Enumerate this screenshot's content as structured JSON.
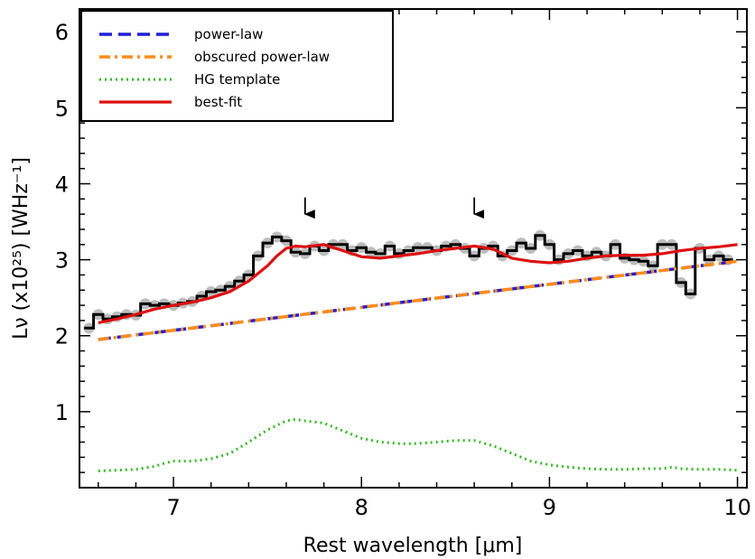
{
  "chart_data": {
    "type": "line",
    "title": "",
    "xlabel": "Rest wavelength [μm]",
    "ylabel": "Lν (x10²⁵) [WHz⁻¹]",
    "xlim": [
      6.5,
      10.05
    ],
    "ylim": [
      0,
      6.3
    ],
    "xticks": [
      7,
      8,
      9,
      10
    ],
    "xtick_labels": [
      "7",
      "8",
      "9",
      "10"
    ],
    "yticks": [
      1,
      2,
      3,
      4,
      5,
      6
    ],
    "ytick_labels": [
      "1",
      "2",
      "3",
      "4",
      "5",
      "6"
    ],
    "legend_position": "top-left",
    "grid": false,
    "colors": {
      "power_law": "#1f1fd6",
      "obscured_power_law": "#ff8c1a",
      "hg_template": "#33bb22",
      "best_fit": "#dd1111",
      "data": "#000000",
      "data_shadow": "#bdbdbd"
    },
    "series": [
      {
        "name": "power-law",
        "style": "dashed",
        "x": [
          6.6,
          10.0
        ],
        "y": [
          1.95,
          2.98
        ]
      },
      {
        "name": "obscured power-law",
        "style": "dashdot",
        "x": [
          6.6,
          10.0
        ],
        "y": [
          1.95,
          2.98
        ]
      },
      {
        "name": "HG template",
        "style": "dotted",
        "x": [
          6.6,
          6.8,
          6.9,
          6.95,
          7.0,
          7.1,
          7.2,
          7.3,
          7.4,
          7.5,
          7.6,
          7.65,
          7.7,
          7.8,
          7.9,
          8.0,
          8.1,
          8.2,
          8.3,
          8.4,
          8.5,
          8.6,
          8.7,
          8.8,
          8.9,
          9.0,
          9.1,
          9.2,
          9.3,
          9.4,
          9.5,
          9.6,
          9.65,
          9.7,
          9.8,
          9.9,
          10.0
        ],
        "y": [
          0.22,
          0.24,
          0.28,
          0.32,
          0.35,
          0.35,
          0.38,
          0.45,
          0.6,
          0.76,
          0.88,
          0.9,
          0.88,
          0.85,
          0.75,
          0.65,
          0.6,
          0.58,
          0.58,
          0.6,
          0.62,
          0.62,
          0.55,
          0.45,
          0.35,
          0.3,
          0.27,
          0.25,
          0.24,
          0.24,
          0.25,
          0.25,
          0.27,
          0.25,
          0.24,
          0.24,
          0.23
        ]
      },
      {
        "name": "best-fit",
        "style": "solid",
        "x": [
          6.6,
          6.7,
          6.8,
          6.9,
          7.0,
          7.1,
          7.2,
          7.3,
          7.4,
          7.5,
          7.55,
          7.6,
          7.65,
          7.7,
          7.8,
          7.9,
          8.0,
          8.1,
          8.2,
          8.3,
          8.4,
          8.5,
          8.6,
          8.7,
          8.8,
          8.9,
          9.0,
          9.1,
          9.2,
          9.3,
          9.4,
          9.5,
          9.6,
          9.7,
          9.8,
          9.9,
          10.0
        ],
        "y": [
          2.17,
          2.22,
          2.28,
          2.35,
          2.4,
          2.44,
          2.5,
          2.58,
          2.72,
          2.92,
          3.05,
          3.15,
          3.18,
          3.17,
          3.2,
          3.12,
          3.04,
          3.02,
          3.05,
          3.08,
          3.12,
          3.15,
          3.18,
          3.14,
          3.02,
          2.98,
          2.96,
          2.98,
          3.02,
          3.05,
          3.06,
          3.06,
          3.08,
          3.12,
          3.15,
          3.17,
          3.2
        ]
      },
      {
        "name": "data",
        "style": "steps",
        "x": [
          6.55,
          6.6,
          6.65,
          6.7,
          6.75,
          6.8,
          6.85,
          6.9,
          6.95,
          7.0,
          7.05,
          7.1,
          7.15,
          7.2,
          7.25,
          7.3,
          7.35,
          7.4,
          7.45,
          7.5,
          7.55,
          7.6,
          7.65,
          7.7,
          7.75,
          7.8,
          7.85,
          7.9,
          7.95,
          8.0,
          8.05,
          8.1,
          8.15,
          8.2,
          8.25,
          8.3,
          8.35,
          8.4,
          8.45,
          8.5,
          8.55,
          8.6,
          8.65,
          8.7,
          8.75,
          8.8,
          8.85,
          8.9,
          8.95,
          9.0,
          9.05,
          9.1,
          9.15,
          9.2,
          9.25,
          9.3,
          9.35,
          9.4,
          9.45,
          9.5,
          9.55,
          9.6,
          9.65,
          9.7,
          9.75,
          9.8,
          9.85,
          9.9,
          9.95
        ],
        "y": [
          2.1,
          2.28,
          2.22,
          2.25,
          2.28,
          2.27,
          2.42,
          2.4,
          2.42,
          2.4,
          2.43,
          2.45,
          2.52,
          2.58,
          2.6,
          2.65,
          2.72,
          2.8,
          3.05,
          3.22,
          3.3,
          3.25,
          3.1,
          3.08,
          3.18,
          3.12,
          3.2,
          3.2,
          3.12,
          3.16,
          3.1,
          3.08,
          3.18,
          3.08,
          3.12,
          3.16,
          3.16,
          3.12,
          3.18,
          3.2,
          3.15,
          3.05,
          3.15,
          3.18,
          3.05,
          3.12,
          3.22,
          3.15,
          3.32,
          3.2,
          3.0,
          3.08,
          3.12,
          3.05,
          3.1,
          3.05,
          3.2,
          3.02,
          3.0,
          2.98,
          2.92,
          3.2,
          3.2,
          2.7,
          2.55,
          3.15,
          3.0,
          3.05,
          3.0
        ]
      }
    ],
    "annotations": [
      {
        "type": "arrow",
        "x": 7.7,
        "y_from": 3.6,
        "y_to": 3.82
      },
      {
        "type": "arrow",
        "x": 8.6,
        "y_from": 3.6,
        "y_to": 3.82
      }
    ]
  }
}
